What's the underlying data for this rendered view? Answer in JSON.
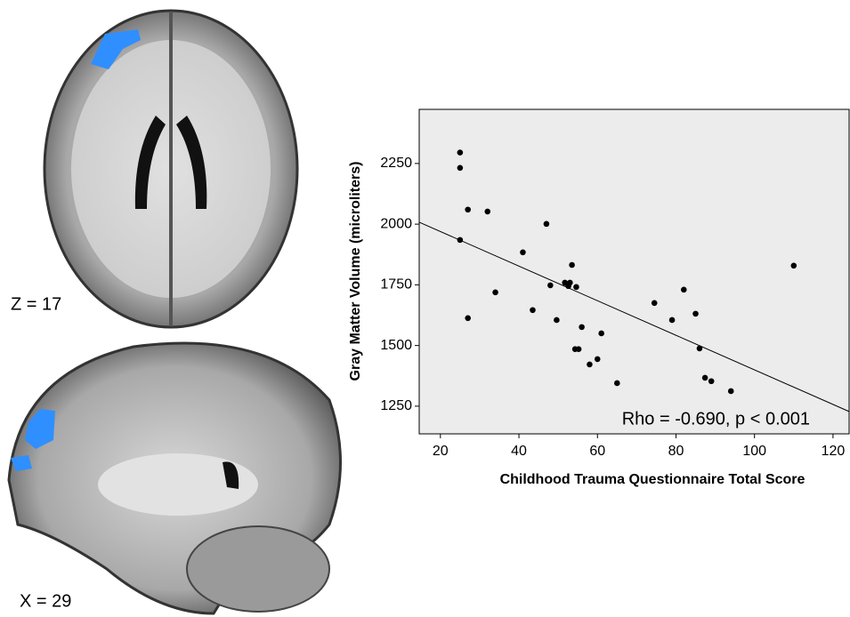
{
  "image_labels": [
    "Z = 17",
    "X = 29"
  ],
  "chart_data": {
    "type": "scatter",
    "xlabel": "Childhood Trauma Questionnaire Total Score",
    "ylabel": "Gray Matter Volume (microliters)",
    "annotation": "Rho = -0.690, p < 0.001",
    "color": "#000000",
    "background": "#ececec",
    "xlim": [
      14.6,
      124.1
    ],
    "ylim": [
      1136,
      2473
    ],
    "xticks": [
      20,
      40,
      60,
      80,
      100,
      120
    ],
    "yticks": [
      1250,
      1500,
      1750,
      2000,
      2250
    ],
    "x": [
      25,
      25,
      27,
      32,
      47,
      25,
      41,
      53.5,
      48,
      51.7,
      53,
      52.6,
      54.6,
      34,
      27,
      43.5,
      49.6,
      56,
      61,
      54.3,
      55.2,
      58,
      60,
      65,
      74.5,
      82,
      79,
      85,
      86,
      87.4,
      89,
      94,
      110
    ],
    "y": [
      2295,
      2232,
      2060,
      2052,
      2001,
      1935,
      1884,
      1832,
      1748,
      1759,
      1759,
      1745,
      1741,
      1719,
      1613,
      1646,
      1605,
      1576,
      1550,
      1485,
      1485,
      1422,
      1444,
      1345,
      1675,
      1730,
      1605,
      1631,
      1488,
      1367,
      1353,
      1312,
      1829
    ],
    "trend": {
      "x": [
        14.6,
        124.1
      ],
      "y": [
        2008,
        1228
      ]
    }
  }
}
